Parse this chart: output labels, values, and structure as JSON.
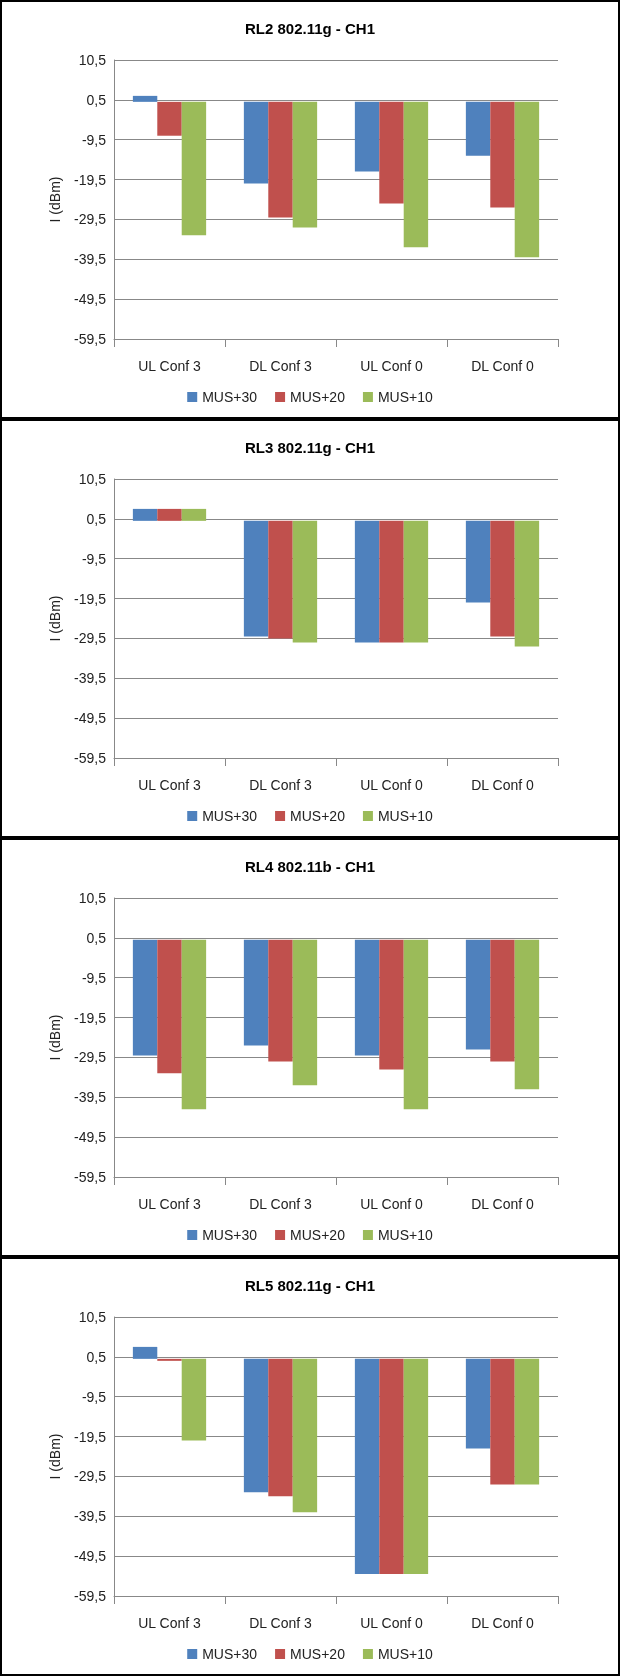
{
  "chart_data": [
    {
      "type": "bar",
      "title": "RL2 802.11g - CH1",
      "ylabel": "I (dBm)",
      "categories": [
        "UL Conf 3",
        "DL Conf 3",
        "UL Conf 0",
        "DL Conf 0"
      ],
      "series": [
        {
          "name": "MUS+30",
          "color": "#4f81bd",
          "values": [
            1.5,
            -20.5,
            -17.5,
            -13.5
          ]
        },
        {
          "name": "MUS+20",
          "color": "#c0504d",
          "values": [
            -8.5,
            -29,
            -25.5,
            -26.5
          ]
        },
        {
          "name": "MUS+10",
          "color": "#9bbb59",
          "values": [
            -33.5,
            -31.5,
            -36.5,
            -39
          ]
        }
      ],
      "ylim": [
        -59.5,
        10.5
      ],
      "yticks": [
        {
          "value": -59.5,
          "label": "-59,5"
        },
        {
          "value": -49.5,
          "label": "-49,5"
        },
        {
          "value": -39.5,
          "label": "-39,5"
        },
        {
          "value": -29.5,
          "label": "-29,5"
        },
        {
          "value": -19.5,
          "label": "-19,5"
        },
        {
          "value": -9.5,
          "label": "-9,5"
        },
        {
          "value": 0.5,
          "label": "0,5"
        },
        {
          "value": 10.5,
          "label": "10,5"
        }
      ],
      "grid": "y",
      "legend": "bottom"
    },
    {
      "type": "bar",
      "title": "RL3 802.11g - CH1",
      "ylabel": "I (dBm)",
      "categories": [
        "UL Conf 3",
        "DL Conf 3",
        "UL Conf 0",
        "DL Conf 0"
      ],
      "series": [
        {
          "name": "MUS+30",
          "color": "#4f81bd",
          "values": [
            3,
            -29,
            -30.5,
            -20.5
          ]
        },
        {
          "name": "MUS+20",
          "color": "#c0504d",
          "values": [
            3,
            -29.5,
            -30.5,
            -29
          ]
        },
        {
          "name": "MUS+10",
          "color": "#9bbb59",
          "values": [
            3,
            -30.5,
            -30.5,
            -31.5
          ]
        }
      ],
      "ylim": [
        -59.5,
        10.5
      ],
      "yticks": [
        {
          "value": -59.5,
          "label": "-59,5"
        },
        {
          "value": -49.5,
          "label": "-49,5"
        },
        {
          "value": -39.5,
          "label": "-39,5"
        },
        {
          "value": -29.5,
          "label": "-29,5"
        },
        {
          "value": -19.5,
          "label": "-19,5"
        },
        {
          "value": -9.5,
          "label": "-9,5"
        },
        {
          "value": 0.5,
          "label": "0,5"
        },
        {
          "value": 10.5,
          "label": "10,5"
        }
      ],
      "grid": "y",
      "legend": "bottom"
    },
    {
      "type": "bar",
      "title": "RL4 802.11b - CH1",
      "ylabel": "I (dBm)",
      "categories": [
        "UL Conf 3",
        "DL Conf 3",
        "UL Conf 0",
        "DL Conf 0"
      ],
      "series": [
        {
          "name": "MUS+30",
          "color": "#4f81bd",
          "values": [
            -29,
            -26.5,
            -29,
            -27.5
          ]
        },
        {
          "name": "MUS+20",
          "color": "#c0504d",
          "values": [
            -33.5,
            -30.5,
            -32.5,
            -30.5
          ]
        },
        {
          "name": "MUS+10",
          "color": "#9bbb59",
          "values": [
            -42.5,
            -36.5,
            -42.5,
            -37.5
          ]
        }
      ],
      "ylim": [
        -59.5,
        10.5
      ],
      "yticks": [
        {
          "value": -59.5,
          "label": "-59,5"
        },
        {
          "value": -49.5,
          "label": "-49,5"
        },
        {
          "value": -39.5,
          "label": "-39,5"
        },
        {
          "value": -29.5,
          "label": "-29,5"
        },
        {
          "value": -19.5,
          "label": "-19,5"
        },
        {
          "value": -9.5,
          "label": "-9,5"
        },
        {
          "value": 0.5,
          "label": "0,5"
        },
        {
          "value": 10.5,
          "label": "10,5"
        }
      ],
      "grid": "y",
      "legend": "bottom"
    },
    {
      "type": "bar",
      "title": "RL5 802.11g - CH1",
      "ylabel": "I (dBm)",
      "categories": [
        "UL Conf 3",
        "DL Conf 3",
        "UL Conf 0",
        "DL Conf 0"
      ],
      "series": [
        {
          "name": "MUS+30",
          "color": "#4f81bd",
          "values": [
            3,
            -33.5,
            -54,
            -22.5
          ]
        },
        {
          "name": "MUS+20",
          "color": "#c0504d",
          "values": [
            -0.5,
            -34.5,
            -54,
            -31.5
          ]
        },
        {
          "name": "MUS+10",
          "color": "#9bbb59",
          "values": [
            -20.5,
            -38.5,
            -54,
            -31.5
          ]
        }
      ],
      "ylim": [
        -59.5,
        10.5
      ],
      "yticks": [
        {
          "value": -59.5,
          "label": "-59,5"
        },
        {
          "value": -49.5,
          "label": "-49,5"
        },
        {
          "value": -39.5,
          "label": "-39,5"
        },
        {
          "value": -29.5,
          "label": "-29,5"
        },
        {
          "value": -19.5,
          "label": "-19,5"
        },
        {
          "value": -9.5,
          "label": "-9,5"
        },
        {
          "value": 0.5,
          "label": "0,5"
        },
        {
          "value": 10.5,
          "label": "10,5"
        }
      ],
      "grid": "y",
      "legend": "bottom"
    }
  ]
}
